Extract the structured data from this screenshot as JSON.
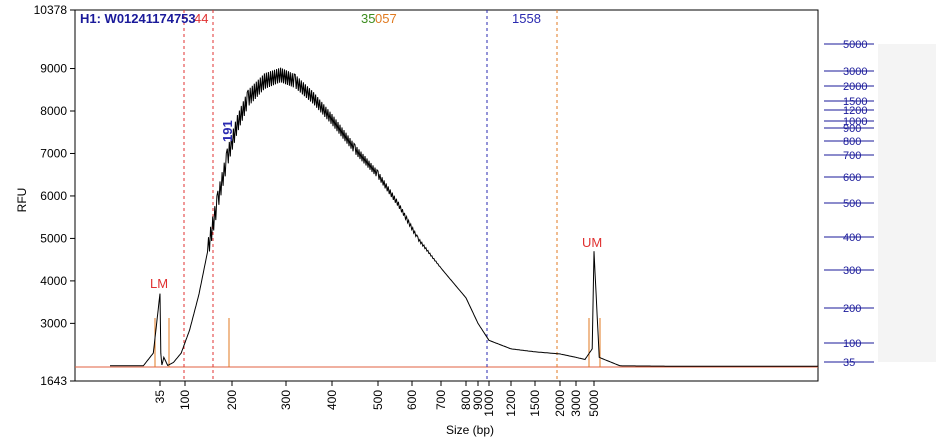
{
  "sample_id": "H1: W01241174753",
  "chart_data": {
    "type": "line",
    "xlabel": "Size (bp)",
    "ylabel": "RFU",
    "ylim": [
      1643,
      10378
    ],
    "yticks": [
      1643,
      3000,
      4000,
      5000,
      6000,
      7000,
      8000,
      9000,
      10378
    ],
    "xticks": [
      35,
      100,
      200,
      300,
      400,
      500,
      600,
      700,
      800,
      900,
      1000,
      1200,
      1500,
      2000,
      3000,
      5000
    ],
    "right_ladder": [
      5000,
      3000,
      2000,
      1500,
      1200,
      1000,
      900,
      800,
      700,
      600,
      500,
      400,
      300,
      200,
      100,
      35
    ],
    "region_markers": [
      {
        "label": "44",
        "color": "#e03030"
      },
      {
        "label": "1558",
        "color": "#2a2ab0"
      }
    ],
    "peak_labels": [
      {
        "text": "LM",
        "x": 35,
        "color": "#e03030"
      },
      {
        "text": "UM",
        "x": 5000,
        "color": "#e03030"
      },
      {
        "text": "191",
        "x": 191,
        "color": "#2a2ab0"
      }
    ],
    "top_numbers": [
      {
        "text": "35",
        "color": "#3c8c1e"
      },
      {
        "text": "057",
        "color": "#e07a20"
      }
    ],
    "series": [
      {
        "x": [
          20,
          30,
          33,
          35,
          37,
          40,
          45,
          55,
          70,
          90,
          110,
          130,
          150,
          170,
          190,
          210,
          230,
          260,
          290,
          320,
          360,
          400,
          450,
          500,
          560,
          620,
          700,
          800,
          900,
          1000,
          1200,
          1500,
          2000,
          3000,
          4000,
          4800,
          5000,
          5200,
          6000,
          8000
        ],
        "y": [
          2000,
          2000,
          2300,
          3700,
          2300,
          2020,
          2200,
          2010,
          2080,
          2300,
          2850,
          3700,
          4800,
          5900,
          6900,
          7700,
          8300,
          8700,
          8850,
          8700,
          8300,
          7800,
          7100,
          6500,
          5800,
          5000,
          4300,
          3600,
          3000,
          2600,
          2400,
          2330,
          2280,
          2200,
          2150,
          2400,
          4700,
          2200,
          2000,
          1990
        ]
      }
    ]
  }
}
